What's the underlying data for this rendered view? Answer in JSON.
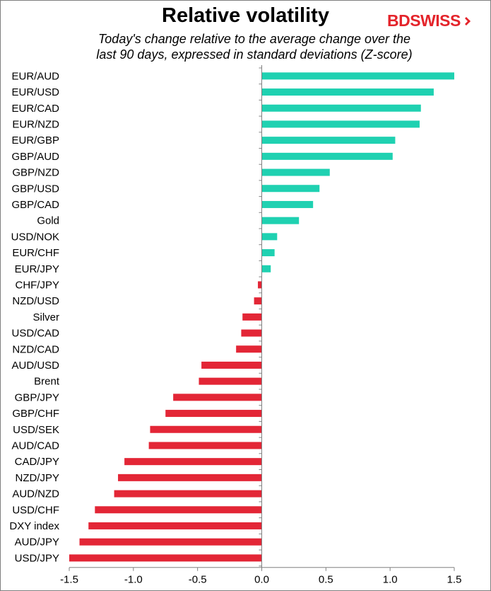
{
  "header": {
    "title": "Relative volatility",
    "subtitle_line1": "Today's change relative to the  average change over the",
    "subtitle_line2": "last 90 days, expressed in standard deviations (Z-score)",
    "logo_text": "BDSWISS"
  },
  "colors": {
    "positive": "#1fd1b1",
    "negative": "#e32636",
    "axis": "#808080",
    "brand": "#e4242b"
  },
  "chart_data": {
    "type": "bar",
    "orientation": "horizontal",
    "title": "Relative volatility",
    "subtitle": "Today's change relative to the  average change over the last 90 days, expressed in standard deviations (Z-score)",
    "xlabel": "",
    "ylabel": "",
    "xlim": [
      -1.5,
      1.5
    ],
    "xticks": [
      -1.5,
      -1.0,
      -0.5,
      0.0,
      0.5,
      1.0,
      1.5
    ],
    "xtick_labels": [
      "-1.5",
      "-1.0",
      "-0.5",
      "0.0",
      "0.5",
      "1.0",
      "1.5"
    ],
    "grid": false,
    "legend": "none",
    "categories": [
      "EUR/AUD",
      "EUR/USD",
      "EUR/CAD",
      "EUR/NZD",
      "EUR/GBP",
      "GBP/AUD",
      "GBP/NZD",
      "GBP/USD",
      "GBP/CAD",
      "Gold",
      "USD/NOK",
      "EUR/CHF",
      "EUR/JPY",
      "CHF/JPY",
      "NZD/USD",
      "Silver",
      "USD/CAD",
      "NZD/CAD",
      "AUD/USD",
      "Brent",
      "GBP/JPY",
      "GBP/CHF",
      "USD/SEK",
      "AUD/CAD",
      "CAD/JPY",
      "NZD/JPY",
      "AUD/NZD",
      "USD/CHF",
      "DXY index",
      "AUD/JPY",
      "USD/JPY"
    ],
    "values": [
      1.5,
      1.34,
      1.24,
      1.23,
      1.04,
      1.02,
      0.53,
      0.45,
      0.4,
      0.29,
      0.12,
      0.1,
      0.07,
      -0.03,
      -0.06,
      -0.15,
      -0.16,
      -0.2,
      -0.47,
      -0.49,
      -0.69,
      -0.75,
      -0.87,
      -0.88,
      -1.07,
      -1.12,
      -1.15,
      -1.3,
      -1.35,
      -1.42,
      -1.5
    ]
  }
}
